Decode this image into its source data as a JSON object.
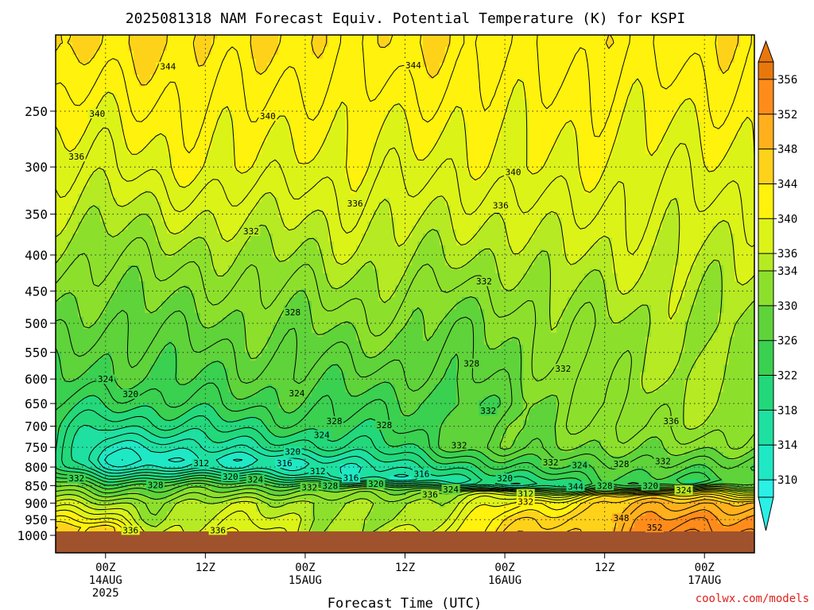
{
  "chart_data": {
    "type": "heatmap",
    "title": "2025081318 NAM Forecast Equiv. Potential Temperature (K) for KSPI",
    "xlabel": "Forecast Time (UTC)",
    "ylabel": "",
    "x_ticks": [
      {
        "hour": 6,
        "lines": [
          "00Z",
          "14AUG",
          "2025"
        ]
      },
      {
        "hour": 18,
        "lines": [
          "12Z"
        ]
      },
      {
        "hour": 30,
        "lines": [
          "00Z",
          "15AUG"
        ]
      },
      {
        "hour": 42,
        "lines": [
          "12Z"
        ]
      },
      {
        "hour": 54,
        "lines": [
          "00Z",
          "16AUG"
        ]
      },
      {
        "hour": 66,
        "lines": [
          "12Z"
        ]
      },
      {
        "hour": 78,
        "lines": [
          "00Z",
          "17AUG"
        ]
      }
    ],
    "x_unit": "hours after 2025-08-13 18Z",
    "xlim": [
      0,
      84
    ],
    "y_ticks": [
      250,
      300,
      350,
      400,
      450,
      500,
      550,
      600,
      650,
      700,
      750,
      800,
      850,
      900,
      950,
      1000
    ],
    "ylim": [
      200,
      1000
    ],
    "y_scale": "log",
    "y_inverted": true,
    "grid": true,
    "colorbar": {
      "ticks": [
        310,
        314,
        318,
        322,
        326,
        330,
        334,
        336,
        340,
        344,
        348,
        352,
        356
      ],
      "colors": [
        "#2af0e6",
        "#1fe8c4",
        "#1ee0a0",
        "#22d87a",
        "#3ad050",
        "#5fd33a",
        "#8ce02c",
        "#b6ea22",
        "#dcf318",
        "#fff20c",
        "#ffd21a",
        "#ffb01c",
        "#ff8c1a",
        "#e8780c"
      ],
      "min": 308,
      "max": 358
    },
    "surface_fill": "#a0522d",
    "profiles": [
      {
        "hour": 0,
        "values": [
          [
            200,
            346
          ],
          [
            300,
            338
          ],
          [
            400,
            333
          ],
          [
            500,
            329
          ],
          [
            600,
            326
          ],
          [
            650,
            324
          ],
          [
            700,
            322
          ],
          [
            750,
            322
          ],
          [
            800,
            322
          ],
          [
            850,
            330
          ],
          [
            900,
            336
          ],
          [
            950,
            342
          ],
          [
            975,
            345
          ],
          [
            1000,
            345
          ]
        ]
      },
      {
        "hour": 6,
        "values": [
          [
            200,
            344
          ],
          [
            300,
            338
          ],
          [
            400,
            332
          ],
          [
            500,
            328
          ],
          [
            600,
            325
          ],
          [
            650,
            322
          ],
          [
            700,
            318
          ],
          [
            750,
            314
          ],
          [
            780,
            312
          ],
          [
            800,
            314
          ],
          [
            850,
            326
          ],
          [
            900,
            334
          ],
          [
            950,
            340
          ],
          [
            975,
            344
          ],
          [
            1000,
            344
          ]
        ]
      },
      {
        "hour": 12,
        "values": [
          [
            200,
            344
          ],
          [
            300,
            339
          ],
          [
            400,
            333
          ],
          [
            500,
            329
          ],
          [
            600,
            326
          ],
          [
            650,
            323
          ],
          [
            700,
            319
          ],
          [
            750,
            313
          ],
          [
            780,
            311
          ],
          [
            800,
            313
          ],
          [
            850,
            327
          ],
          [
            900,
            333
          ],
          [
            950,
            334
          ],
          [
            1000,
            336
          ]
        ]
      },
      {
        "hour": 18,
        "values": [
          [
            200,
            344
          ],
          [
            300,
            340
          ],
          [
            400,
            333
          ],
          [
            500,
            329
          ],
          [
            600,
            326
          ],
          [
            650,
            324
          ],
          [
            700,
            320
          ],
          [
            750,
            316
          ],
          [
            780,
            313
          ],
          [
            800,
            314
          ],
          [
            850,
            328
          ],
          [
            900,
            334
          ],
          [
            950,
            336
          ],
          [
            1000,
            338
          ]
        ]
      },
      {
        "hour": 24,
        "values": [
          [
            200,
            344
          ],
          [
            300,
            340
          ],
          [
            400,
            334
          ],
          [
            500,
            330
          ],
          [
            600,
            327
          ],
          [
            650,
            325
          ],
          [
            700,
            322
          ],
          [
            750,
            318
          ],
          [
            780,
            314
          ],
          [
            800,
            315
          ],
          [
            850,
            328
          ],
          [
            900,
            336
          ],
          [
            950,
            338
          ],
          [
            1000,
            340
          ]
        ]
      },
      {
        "hour": 30,
        "values": [
          [
            200,
            343
          ],
          [
            300,
            338
          ],
          [
            400,
            334
          ],
          [
            500,
            330
          ],
          [
            600,
            327
          ],
          [
            650,
            325
          ],
          [
            700,
            323
          ],
          [
            750,
            319
          ],
          [
            790,
            313
          ],
          [
            820,
            315
          ],
          [
            860,
            329
          ],
          [
            900,
            334
          ],
          [
            950,
            336
          ],
          [
            1000,
            336
          ]
        ]
      },
      {
        "hour": 36,
        "values": [
          [
            200,
            343
          ],
          [
            300,
            340
          ],
          [
            400,
            335
          ],
          [
            500,
            331
          ],
          [
            600,
            327
          ],
          [
            650,
            325
          ],
          [
            700,
            323
          ],
          [
            750,
            320
          ],
          [
            800,
            314
          ],
          [
            830,
            314
          ],
          [
            860,
            330
          ],
          [
            900,
            333
          ],
          [
            950,
            333
          ],
          [
            1000,
            334
          ]
        ]
      },
      {
        "hour": 42,
        "values": [
          [
            200,
            344
          ],
          [
            300,
            339
          ],
          [
            400,
            335
          ],
          [
            500,
            331
          ],
          [
            600,
            327
          ],
          [
            650,
            325
          ],
          [
            700,
            324
          ],
          [
            750,
            322
          ],
          [
            800,
            318
          ],
          [
            830,
            315
          ],
          [
            860,
            330
          ],
          [
            900,
            334
          ],
          [
            950,
            334
          ],
          [
            1000,
            336
          ]
        ]
      },
      {
        "hour": 48,
        "values": [
          [
            200,
            343
          ],
          [
            300,
            338
          ],
          [
            400,
            334
          ],
          [
            500,
            329
          ],
          [
            600,
            327
          ],
          [
            650,
            325
          ],
          [
            700,
            326
          ],
          [
            750,
            326
          ],
          [
            800,
            320
          ],
          [
            840,
            316
          ],
          [
            870,
            334
          ],
          [
            900,
            336
          ],
          [
            950,
            338
          ],
          [
            1000,
            340
          ]
        ]
      },
      {
        "hour": 54,
        "values": [
          [
            200,
            343
          ],
          [
            300,
            340
          ],
          [
            400,
            334
          ],
          [
            500,
            330
          ],
          [
            600,
            329
          ],
          [
            650,
            328
          ],
          [
            700,
            330
          ],
          [
            750,
            330
          ],
          [
            800,
            324
          ],
          [
            850,
            318
          ],
          [
            870,
            336
          ],
          [
            900,
            340
          ],
          [
            950,
            344
          ],
          [
            1000,
            346
          ]
        ]
      },
      {
        "hour": 60,
        "values": [
          [
            200,
            342
          ],
          [
            300,
            340
          ],
          [
            400,
            336
          ],
          [
            500,
            333
          ],
          [
            600,
            331
          ],
          [
            650,
            330
          ],
          [
            700,
            330
          ],
          [
            750,
            329
          ],
          [
            800,
            326
          ],
          [
            850,
            320
          ],
          [
            880,
            336
          ],
          [
            900,
            342
          ],
          [
            950,
            346
          ],
          [
            1000,
            348
          ]
        ]
      },
      {
        "hour": 66,
        "values": [
          [
            200,
            343
          ],
          [
            300,
            339
          ],
          [
            400,
            336
          ],
          [
            500,
            333
          ],
          [
            600,
            333
          ],
          [
            650,
            333
          ],
          [
            700,
            332
          ],
          [
            750,
            330
          ],
          [
            800,
            326
          ],
          [
            850,
            324
          ],
          [
            880,
            344
          ],
          [
            900,
            346
          ],
          [
            950,
            348
          ],
          [
            1000,
            348
          ]
        ]
      },
      {
        "hour": 72,
        "values": [
          [
            200,
            343
          ],
          [
            300,
            339
          ],
          [
            400,
            336
          ],
          [
            500,
            334
          ],
          [
            600,
            334
          ],
          [
            650,
            333
          ],
          [
            700,
            333
          ],
          [
            750,
            331
          ],
          [
            800,
            328
          ],
          [
            850,
            324
          ],
          [
            880,
            346
          ],
          [
            900,
            349
          ],
          [
            950,
            352
          ],
          [
            1000,
            354
          ]
        ]
      },
      {
        "hour": 78,
        "values": [
          [
            200,
            343
          ],
          [
            300,
            339
          ],
          [
            400,
            336
          ],
          [
            500,
            334
          ],
          [
            600,
            334
          ],
          [
            650,
            334
          ],
          [
            700,
            333
          ],
          [
            750,
            331
          ],
          [
            800,
            327
          ],
          [
            840,
            323
          ],
          [
            870,
            344
          ],
          [
            900,
            350
          ],
          [
            950,
            354
          ],
          [
            1000,
            356
          ]
        ]
      },
      {
        "hour": 84,
        "values": [
          [
            200,
            343
          ],
          [
            300,
            339
          ],
          [
            400,
            336
          ],
          [
            500,
            334
          ],
          [
            600,
            334
          ],
          [
            650,
            333
          ],
          [
            700,
            332
          ],
          [
            750,
            330
          ],
          [
            800,
            326
          ],
          [
            850,
            328
          ],
          [
            900,
            348
          ],
          [
            950,
            352
          ],
          [
            1000,
            354
          ]
        ]
      }
    ],
    "contour_labels": [
      {
        "hour": 13.5,
        "p": 216,
        "text": "344"
      },
      {
        "hour": 43,
        "p": 215,
        "text": "344"
      },
      {
        "hour": 5,
        "p": 252,
        "text": "340"
      },
      {
        "hour": 25.5,
        "p": 254,
        "text": "340"
      },
      {
        "hour": 2.5,
        "p": 290,
        "text": "336"
      },
      {
        "hour": 55,
        "p": 305,
        "text": "340"
      },
      {
        "hour": 36,
        "p": 338,
        "text": "336"
      },
      {
        "hour": 53.5,
        "p": 340,
        "text": "336"
      },
      {
        "hour": 23.5,
        "p": 370,
        "text": "332"
      },
      {
        "hour": 51.5,
        "p": 436,
        "text": "332"
      },
      {
        "hour": 28.5,
        "p": 482,
        "text": "328"
      },
      {
        "hour": 50,
        "p": 570,
        "text": "328"
      },
      {
        "hour": 61,
        "p": 580,
        "text": "332"
      },
      {
        "hour": 6,
        "p": 600,
        "text": "324"
      },
      {
        "hour": 9,
        "p": 630,
        "text": "320"
      },
      {
        "hour": 29,
        "p": 628,
        "text": "324"
      },
      {
        "hour": 52,
        "p": 665,
        "text": "332"
      },
      {
        "hour": 33.5,
        "p": 688,
        "text": "328"
      },
      {
        "hour": 39.5,
        "p": 697,
        "text": "328"
      },
      {
        "hour": 74,
        "p": 688,
        "text": "336"
      },
      {
        "hour": 32,
        "p": 720,
        "text": "324"
      },
      {
        "hour": 48.5,
        "p": 745,
        "text": "332"
      },
      {
        "hour": 28.5,
        "p": 760,
        "text": "320"
      },
      {
        "hour": 17.5,
        "p": 790,
        "text": "312"
      },
      {
        "hour": 27.5,
        "p": 790,
        "text": "316"
      },
      {
        "hour": 31.5,
        "p": 810,
        "text": "312"
      },
      {
        "hour": 44,
        "p": 818,
        "text": "316"
      },
      {
        "hour": 59.5,
        "p": 788,
        "text": "332"
      },
      {
        "hour": 68,
        "p": 792,
        "text": "328"
      },
      {
        "hour": 63,
        "p": 795,
        "text": "324"
      },
      {
        "hour": 73,
        "p": 785,
        "text": "332"
      },
      {
        "hour": 2.5,
        "p": 830,
        "text": "332"
      },
      {
        "hour": 21,
        "p": 825,
        "text": "320"
      },
      {
        "hour": 24,
        "p": 833,
        "text": "324"
      },
      {
        "hour": 35.5,
        "p": 828,
        "text": "316"
      },
      {
        "hour": 54,
        "p": 830,
        "text": "320"
      },
      {
        "hour": 12,
        "p": 848,
        "text": "328"
      },
      {
        "hour": 30.5,
        "p": 855,
        "text": "332"
      },
      {
        "hour": 33,
        "p": 850,
        "text": "328"
      },
      {
        "hour": 38.5,
        "p": 845,
        "text": "320"
      },
      {
        "hour": 47.5,
        "p": 860,
        "text": "324"
      },
      {
        "hour": 56.5,
        "p": 873,
        "text": "312"
      },
      {
        "hour": 62.5,
        "p": 852,
        "text": "344"
      },
      {
        "hour": 66,
        "p": 850,
        "text": "328"
      },
      {
        "hour": 71.5,
        "p": 850,
        "text": "320"
      },
      {
        "hour": 75.5,
        "p": 862,
        "text": "324"
      },
      {
        "hour": 45,
        "p": 875,
        "text": "336"
      },
      {
        "hour": 56.5,
        "p": 895,
        "text": "332"
      },
      {
        "hour": 68,
        "p": 945,
        "text": "348"
      },
      {
        "hour": 72,
        "p": 975,
        "text": "352"
      },
      {
        "hour": 9,
        "p": 983,
        "text": "336"
      },
      {
        "hour": 19.5,
        "p": 983,
        "text": "336"
      }
    ]
  },
  "credit": "coolwx.com/models"
}
